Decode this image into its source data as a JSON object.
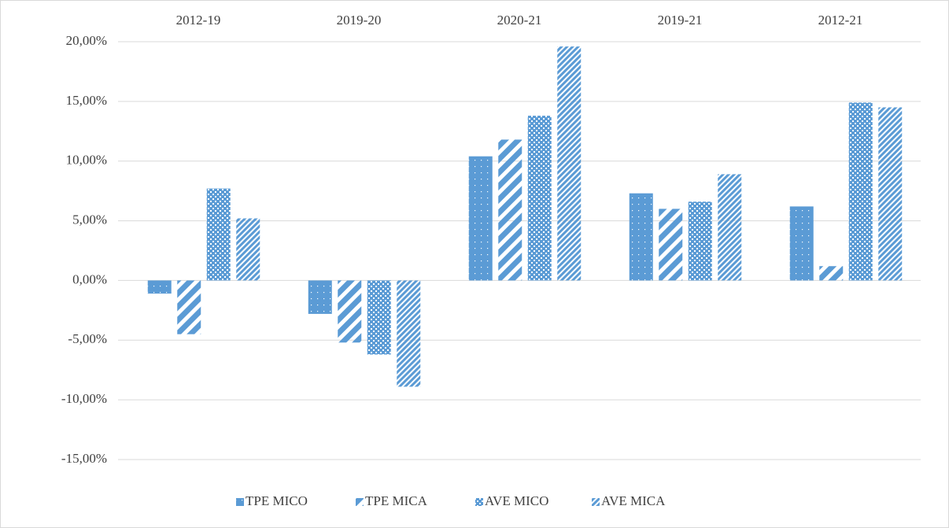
{
  "chart_data": {
    "type": "bar",
    "categories": [
      "2012-19",
      "2019-20",
      "2020-21",
      "2019-21",
      "2012-21"
    ],
    "series": [
      {
        "name": "TPE MICO",
        "color": "#5b9bd5",
        "values": [
          -1.1,
          -2.8,
          10.4,
          7.3,
          6.2
        ]
      },
      {
        "name": "TPE MICA",
        "color": "#5b9bd5",
        "values": [
          -4.5,
          -5.2,
          11.8,
          6.0,
          1.2
        ]
      },
      {
        "name": "AVE MICO",
        "color": "#5b9bd5",
        "values": [
          7.7,
          -6.2,
          13.8,
          6.6,
          14.9
        ]
      },
      {
        "name": "AVE MICA",
        "color": "#5b9bd5",
        "values": [
          5.2,
          -8.9,
          19.6,
          8.9,
          14.5
        ]
      }
    ],
    "ylim": [
      -15,
      20
    ],
    "yticks": [
      {
        "value": -15,
        "label": "-15,00%"
      },
      {
        "value": -10,
        "label": "-10,00%"
      },
      {
        "value": -5,
        "label": "-5,00%"
      },
      {
        "value": 0,
        "label": "0,00%"
      },
      {
        "value": 5,
        "label": "5,00%"
      },
      {
        "value": 10,
        "label": "10,00%"
      },
      {
        "value": 15,
        "label": "15,00%"
      },
      {
        "value": 20,
        "label": "20,00%"
      }
    ],
    "grid": true,
    "legend": "bottom"
  }
}
